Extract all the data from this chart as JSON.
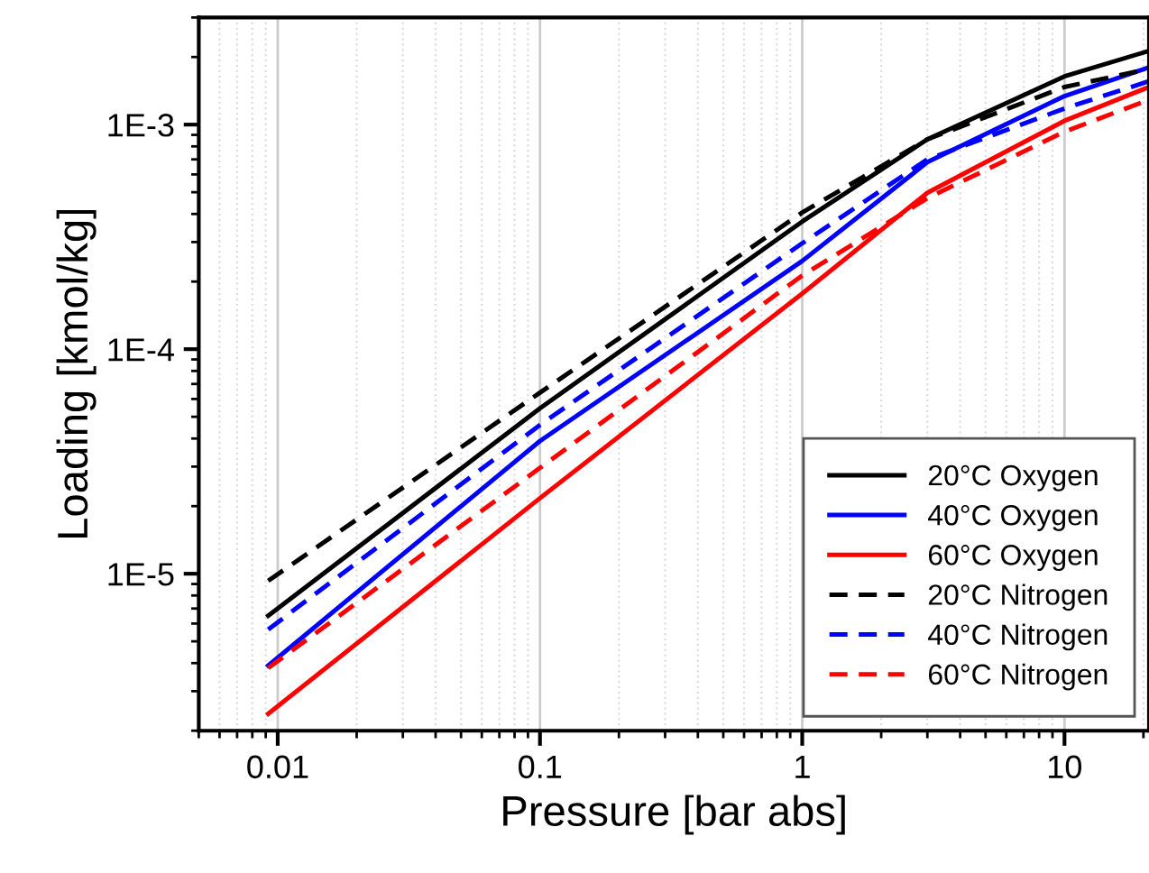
{
  "chart_data": {
    "type": "line",
    "xlabel": "Pressure [bar abs]",
    "ylabel": "Loading [kmol/kg]",
    "log": "xy",
    "grid": "x",
    "legend": "bottom right",
    "line_style": "solid",
    "marker": "none",
    "xlim": [
      0.005,
      21
    ],
    "ylim": [
      2e-06,
      0.003
    ],
    "xticks": [
      0.01,
      0.1,
      1,
      10
    ],
    "yticks": [
      {
        "value": 1e-05,
        "label": "1E-5"
      },
      {
        "value": 0.0001,
        "label": "1E-4"
      },
      {
        "value": 0.001,
        "label": "1E-3"
      }
    ],
    "x": [
      0.0092,
      0.1,
      1,
      3,
      10,
      21
    ],
    "series": [
      {
        "name": "20°C Oxygen",
        "color": "#000000",
        "values": [
          6.5e-06,
          5.45e-05,
          0.00037,
          0.00086,
          0.00164,
          0.00213
        ]
      },
      {
        "name": "40°C Oxygen",
        "color": "#0000ff",
        "values": [
          3.9e-06,
          3.9e-05,
          0.000247,
          0.00068,
          0.00134,
          0.0018
        ]
      },
      {
        "name": "60°C Oxygen",
        "color": "#ff0000",
        "values": [
          2.38e-06,
          2.17e-05,
          0.000177,
          0.000497,
          0.00104,
          0.00147
        ]
      },
      {
        "name": "20°C Nitrogen",
        "color": "#000000",
        "line_style": "dashed",
        "values": [
          9.3e-06,
          6.4e-05,
          0.000406,
          0.00086,
          0.00147,
          0.00177
        ]
      },
      {
        "name": "40°C Nitrogen",
        "color": "#0000ff",
        "line_style": "dashed",
        "values": [
          5.65e-06,
          4.6e-05,
          0.000296,
          0.0007,
          0.00118,
          0.00156
        ]
      },
      {
        "name": "60°C Nitrogen",
        "color": "#ff0000",
        "line_style": "dashed",
        "values": [
          3.8e-06,
          2.96e-05,
          0.000213,
          0.00047,
          0.00093,
          0.00129
        ]
      }
    ]
  }
}
